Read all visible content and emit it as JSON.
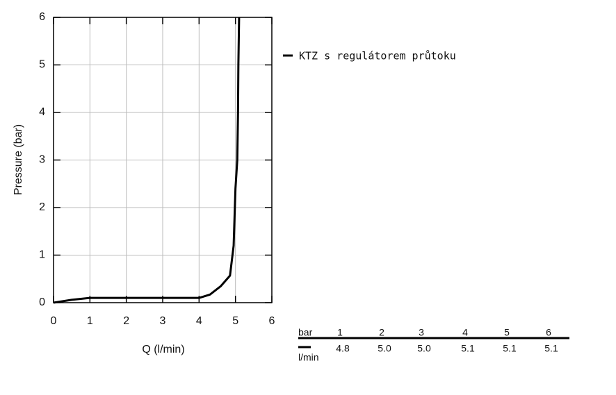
{
  "chart_data": {
    "type": "line",
    "x_label": "Q (l/min)",
    "y_label": "Pressure (bar)",
    "x": [
      0,
      0.5,
      1,
      2,
      3,
      4,
      4.3,
      4.6,
      4.85,
      4.95,
      5.0,
      5.05,
      5.07,
      5.08,
      5.1
    ],
    "series": [
      {
        "name": "KTZ s regulátorem průtoku",
        "color": "#000000",
        "values": [
          0,
          0.06,
          0.1,
          0.1,
          0.1,
          0.1,
          0.17,
          0.35,
          0.57,
          1.2,
          2.4,
          3.0,
          4,
          5,
          6
        ]
      }
    ],
    "xlim": [
      0,
      6
    ],
    "xticks": [
      0,
      1,
      2,
      3,
      4,
      5,
      6
    ],
    "ylim": [
      0,
      6
    ],
    "yticks": [
      0,
      1,
      2,
      3,
      4,
      5,
      6
    ],
    "grid": true,
    "legend": "right"
  },
  "table": {
    "header": "bar",
    "columns": [
      "1",
      "2",
      "3",
      "4",
      "5",
      "6"
    ],
    "row_label": "l/min",
    "values": [
      "4.8",
      "5.0",
      "5.0",
      "5.1",
      "5.1",
      "5.1"
    ]
  }
}
